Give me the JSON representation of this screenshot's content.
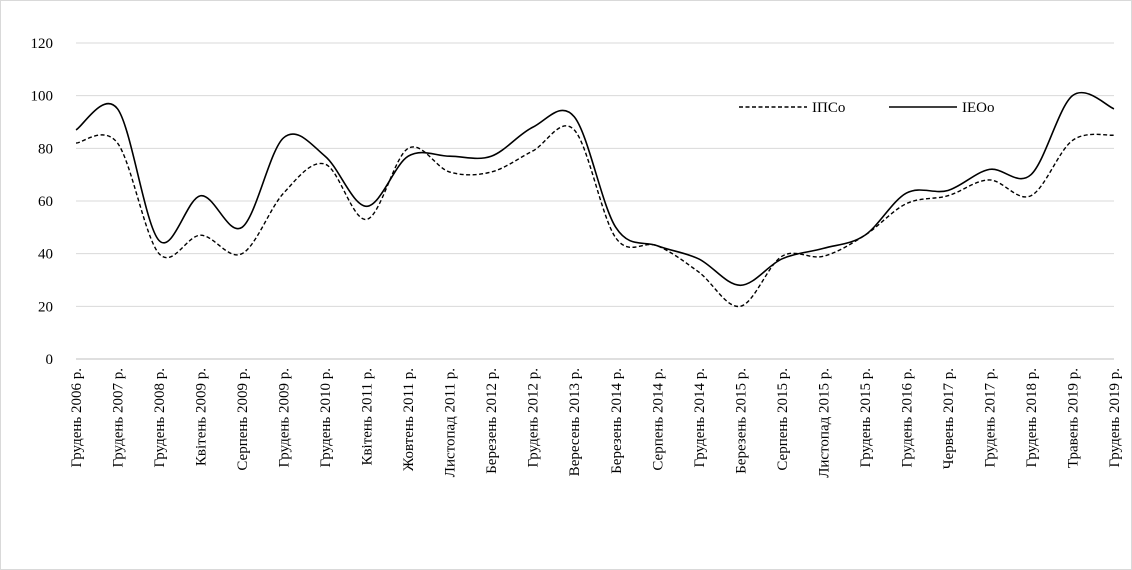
{
  "chart_data": {
    "type": "line",
    "title": "",
    "xlabel": "",
    "ylabel": "",
    "ylim": [
      0,
      120
    ],
    "yticks": [
      "0",
      "20",
      "40",
      "60",
      "80",
      "100",
      "120"
    ],
    "grid": "horizontal",
    "legend_position": "top-right",
    "categories": [
      "Грудень 2006 р.",
      "Грудень 2007 р.",
      "Грудень 2008 р.",
      "Квітень 2009 р.",
      "Серпень 2009 р.",
      "Грудень 2009 р.",
      "Грудень 2010 р.",
      "Квітень 2011 р.",
      "Жовтень 2011 р.",
      "Листопад 2011 р.",
      "Березень 2012 р.",
      "Грудень 2012 р.",
      "Вересень 2013 р.",
      "Березень 2014 р.",
      "Серпень 2014 р.",
      "Грудень 2014 р.",
      "Березень 2015 р.",
      "Серпень 2015 р.",
      "Листопад 2015 р.",
      "Грудень 2015 р.",
      "Грудень 2016 р.",
      "Червень 2017 р.",
      "Грудень 2017 р.",
      "Грудень 2018 р.",
      "Травень 2019 р.",
      "Грудень 2019 р."
    ],
    "series": [
      {
        "name": "ІПСо",
        "style": "dashed",
        "color": "#000000",
        "values": [
          82,
          82,
          40,
          47,
          40,
          63,
          74,
          53,
          80,
          71,
          71,
          79,
          87,
          46,
          43,
          33,
          20,
          39,
          39,
          47,
          59,
          62,
          68,
          62,
          83,
          85
        ]
      },
      {
        "name": "ІЕОо",
        "style": "solid",
        "color": "#000000",
        "values": [
          87,
          95,
          45,
          62,
          50,
          84,
          77,
          58,
          77,
          77,
          77,
          88,
          92,
          50,
          43,
          38,
          28,
          38,
          42,
          47,
          63,
          64,
          72,
          70,
          100,
          95
        ]
      }
    ]
  }
}
